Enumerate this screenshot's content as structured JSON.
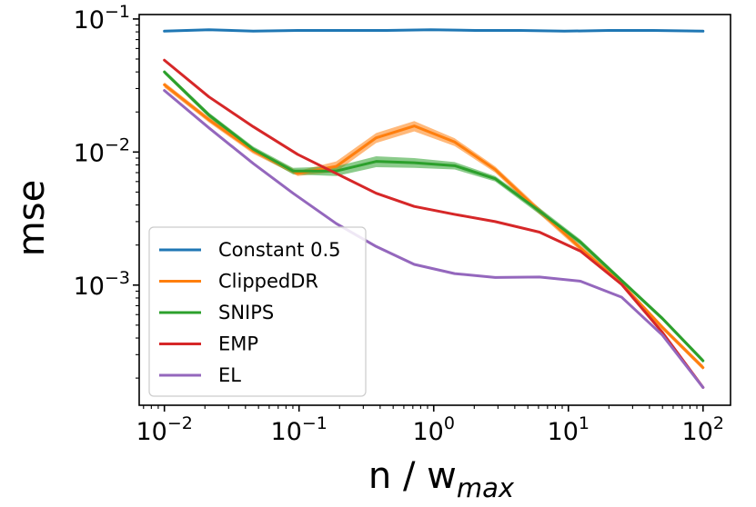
{
  "chart_data": {
    "type": "line",
    "title": "",
    "xlabel": "n / w",
    "xlabel_subscript": "max",
    "ylabel": "mse",
    "xscale": "log",
    "yscale": "log",
    "xlim": [
      0.0065,
      160
    ],
    "ylim": [
      0.000125,
      0.108
    ],
    "x_ticks": [
      {
        "value": 0.01,
        "base": "10",
        "exp": "−2"
      },
      {
        "value": 0.1,
        "base": "10",
        "exp": "−1"
      },
      {
        "value": 1,
        "base": "10",
        "exp": "0"
      },
      {
        "value": 10,
        "base": "10",
        "exp": "1"
      },
      {
        "value": 100,
        "base": "10",
        "exp": "2"
      }
    ],
    "y_ticks": [
      {
        "value": 0.001,
        "base": "10",
        "exp": "−3"
      },
      {
        "value": 0.01,
        "base": "10",
        "exp": "−2"
      },
      {
        "value": 0.1,
        "base": "10",
        "exp": "−1"
      }
    ],
    "legend_position": "lower-left",
    "series": [
      {
        "name": "Constant 0.5",
        "color": "#1f77b4",
        "x": [
          0.01,
          0.0214,
          0.0457,
          0.0977,
          0.209,
          0.447,
          0.955,
          2.04,
          4.37,
          9.33,
          20,
          42.7,
          100
        ],
        "values": [
          0.081,
          0.083,
          0.081,
          0.082,
          0.082,
          0.082,
          0.083,
          0.082,
          0.082,
          0.081,
          0.082,
          0.082,
          0.081
        ]
      },
      {
        "name": "ClippedDR",
        "color": "#ff7f0e",
        "x": [
          0.01,
          0.0214,
          0.0457,
          0.0977,
          0.189,
          0.374,
          0.717,
          1.43,
          2.86,
          6.1,
          12.3,
          24.9,
          50,
          100
        ],
        "values": [
          0.032,
          0.0175,
          0.0102,
          0.0069,
          0.0078,
          0.0128,
          0.0157,
          0.0119,
          0.0074,
          0.0036,
          0.0019,
          0.00102,
          0.00048,
          0.00024
        ],
        "band": [
          0.0015,
          0.0008,
          0.0005,
          0.0003,
          0.0007,
          0.0011,
          0.0014,
          0.0008,
          0.0004,
          0.0002,
          0.0001,
          4e-05,
          2e-05,
          1e-05
        ]
      },
      {
        "name": "SNIPS",
        "color": "#2ca02c",
        "x": [
          0.01,
          0.0214,
          0.0457,
          0.0903,
          0.189,
          0.374,
          0.717,
          1.43,
          2.86,
          6.1,
          12.3,
          24.9,
          50,
          100
        ],
        "values": [
          0.04,
          0.019,
          0.0105,
          0.0072,
          0.0072,
          0.0085,
          0.0083,
          0.0079,
          0.0063,
          0.0036,
          0.0021,
          0.00108,
          0.00056,
          0.00027
        ],
        "band": [
          0.0015,
          0.0008,
          0.0005,
          0.0004,
          0.0006,
          0.0008,
          0.0007,
          0.0005,
          0.0003,
          0.0002,
          0.0001,
          4e-05,
          2e-05,
          1e-05
        ]
      },
      {
        "name": "EMP",
        "color": "#d62728",
        "x": [
          0.01,
          0.0214,
          0.0457,
          0.0977,
          0.189,
          0.374,
          0.717,
          1.43,
          2.86,
          6.1,
          12.3,
          24.9,
          50,
          100
        ],
        "values": [
          0.049,
          0.026,
          0.0155,
          0.0096,
          0.0069,
          0.0049,
          0.0039,
          0.0034,
          0.003,
          0.0025,
          0.0018,
          0.00101,
          0.00044,
          0.00017
        ],
        "band": [
          0,
          0,
          0,
          0,
          0,
          0,
          0,
          0,
          0,
          0,
          0,
          0,
          0,
          0
        ]
      },
      {
        "name": "EL",
        "color": "#9467bd",
        "x": [
          0.01,
          0.0214,
          0.0457,
          0.0903,
          0.189,
          0.374,
          0.717,
          1.43,
          2.86,
          6.1,
          12.3,
          24.9,
          50,
          100
        ],
        "values": [
          0.029,
          0.0152,
          0.0082,
          0.0049,
          0.0029,
          0.00195,
          0.00143,
          0.00122,
          0.00114,
          0.00115,
          0.00107,
          0.00081,
          0.00042,
          0.00017
        ],
        "band": [
          0,
          0,
          0,
          0,
          0,
          0,
          0,
          0,
          0,
          0,
          0,
          0,
          0,
          0
        ]
      }
    ]
  }
}
